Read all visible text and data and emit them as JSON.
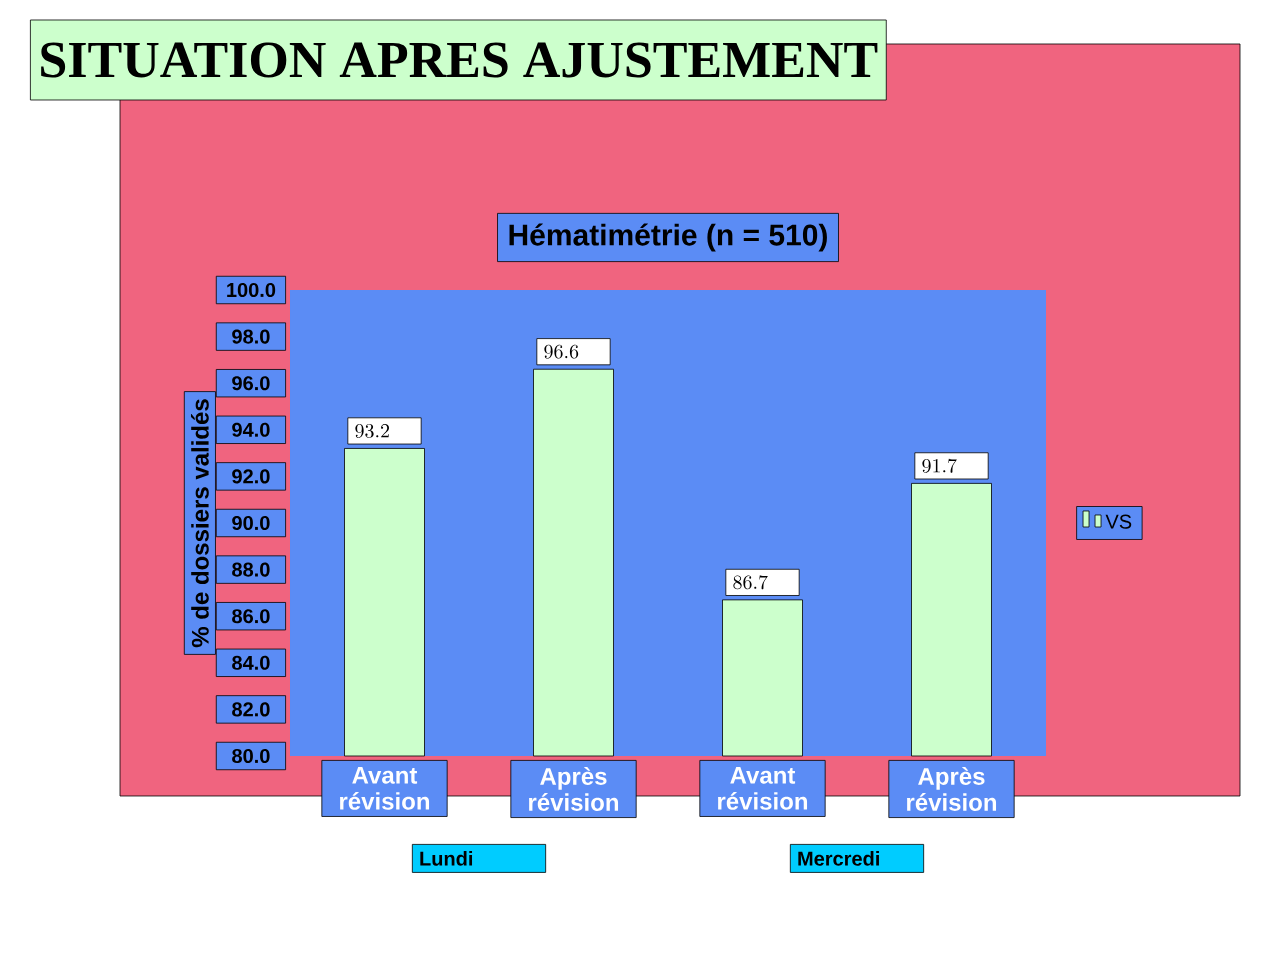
{
  "chart_data": {
    "type": "bar",
    "title": "SITUATION APRES AJUSTEMENT",
    "subtitle": "Hématimétrie (n = 510)",
    "ylabel": "% de dossiers validés",
    "categories": [
      "Avant révision",
      "Après révision",
      "Avant révision",
      "Après révision"
    ],
    "series": [
      {
        "name": "VS",
        "color": "#ccffcc",
        "values": [
          93.2,
          96.6,
          86.7,
          91.7
        ]
      }
    ],
    "ylim": [
      80,
      100
    ],
    "yticks": [
      {
        "value": 80,
        "label": "80.0"
      },
      {
        "value": 82,
        "label": "82.0"
      },
      {
        "value": 84,
        "label": "84.0"
      },
      {
        "value": 86,
        "label": "86.0"
      },
      {
        "value": 88,
        "label": "88.0"
      },
      {
        "value": 90,
        "label": "90.0"
      },
      {
        "value": 92,
        "label": "92.0"
      },
      {
        "value": 94,
        "label": "94.0"
      },
      {
        "value": 96,
        "label": "96.0"
      },
      {
        "value": 98,
        "label": "98.0"
      },
      {
        "value": 100,
        "label": "100.0"
      }
    ],
    "annotations": [
      "Lundi",
      "Mercredi"
    ],
    "data_labels": true,
    "legend": "right"
  }
}
